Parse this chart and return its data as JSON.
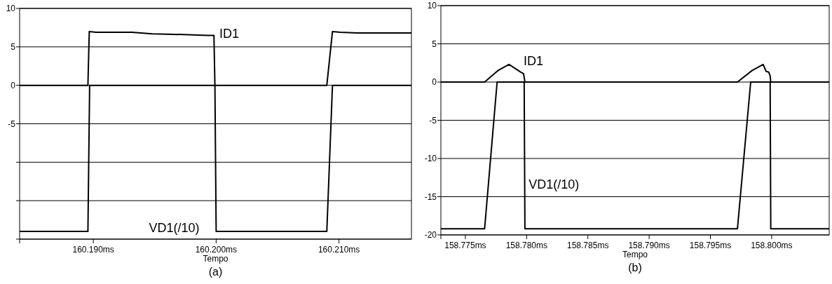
{
  "chart_data": [
    {
      "type": "line",
      "title": "(a)",
      "xlabel": "Tempo",
      "grid": "y",
      "xlim": [
        160.184,
        160.2159
      ],
      "ylim": [
        -20,
        10
      ],
      "xticks": [
        {
          "value": 160.19,
          "label": "160.190ms"
        },
        {
          "value": 160.2,
          "label": "160.200ms"
        },
        {
          "value": 160.21,
          "label": "160.210ms"
        }
      ],
      "yticks": [
        10,
        5,
        0,
        -5,
        {
          "value": -10,
          "label": null
        },
        {
          "value": -15,
          "label": null
        },
        {
          "value": -20,
          "label": null
        }
      ],
      "series": [
        {
          "name": "ID1",
          "color": "#000000",
          "x": [
            160.184,
            160.18956,
            160.18967,
            160.19022,
            160.19314,
            160.19479,
            160.1973,
            160.1993,
            160.19982,
            160.1999,
            160.20901,
            160.20947,
            160.2101,
            160.21164,
            160.2159
          ],
          "values": [
            0,
            0,
            7,
            6.9,
            6.9,
            6.7,
            6.6,
            6.5,
            6.5,
            0,
            0,
            7,
            6.9,
            6.8,
            6.8
          ]
        },
        {
          "name": "VD1(/10)",
          "color": "#000000",
          "x": [
            160.184,
            160.18956,
            160.1897,
            160.1999,
            160.2,
            160.20901,
            160.20947,
            160.2159
          ],
          "values": [
            -19,
            -19,
            0,
            0,
            -19,
            -19,
            0,
            0
          ]
        }
      ]
    },
    {
      "type": "line",
      "title": "(b)",
      "xlabel": "Tempo",
      "grid": "y",
      "xlim": [
        158.773,
        158.8047
      ],
      "ylim": [
        -20,
        10
      ],
      "xticks": [
        {
          "value": 158.775,
          "label": "158.775ms"
        },
        {
          "value": 158.78,
          "label": "158.780ms"
        },
        {
          "value": 158.785,
          "label": "158.785ms"
        },
        {
          "value": 158.79,
          "label": "158.790ms"
        },
        {
          "value": 158.795,
          "label": "158.795ms"
        },
        {
          "value": 158.8,
          "label": "158.800ms"
        }
      ],
      "yticks": [
        10,
        5,
        0,
        -5,
        -10,
        -15,
        -20
      ],
      "series": [
        {
          "name": "ID1",
          "color": "#000000",
          "x": [
            158.773,
            158.77657,
            158.77765,
            158.77856,
            158.77952,
            158.77975,
            158.7798,
            158.77986,
            158.79721,
            158.7984,
            158.79931,
            158.79954,
            158.79976,
            158.79988,
            158.79993,
            158.8047
          ],
          "values": [
            0,
            0,
            1.5,
            2.3,
            1.3,
            1.1,
            0.6,
            0,
            0,
            1.5,
            2.3,
            1.4,
            1.3,
            0.8,
            0,
            0
          ]
        },
        {
          "name": "VD1(/10)",
          "color": "#000000",
          "x": [
            158.773,
            158.77657,
            158.77759,
            158.7798,
            158.77986,
            158.79721,
            158.79829,
            158.79988,
            158.79993,
            158.8047
          ],
          "values": [
            -19.2,
            -19.2,
            0,
            0,
            -19.2,
            -19.2,
            0,
            0,
            -19.2,
            -19.2
          ]
        }
      ]
    }
  ]
}
